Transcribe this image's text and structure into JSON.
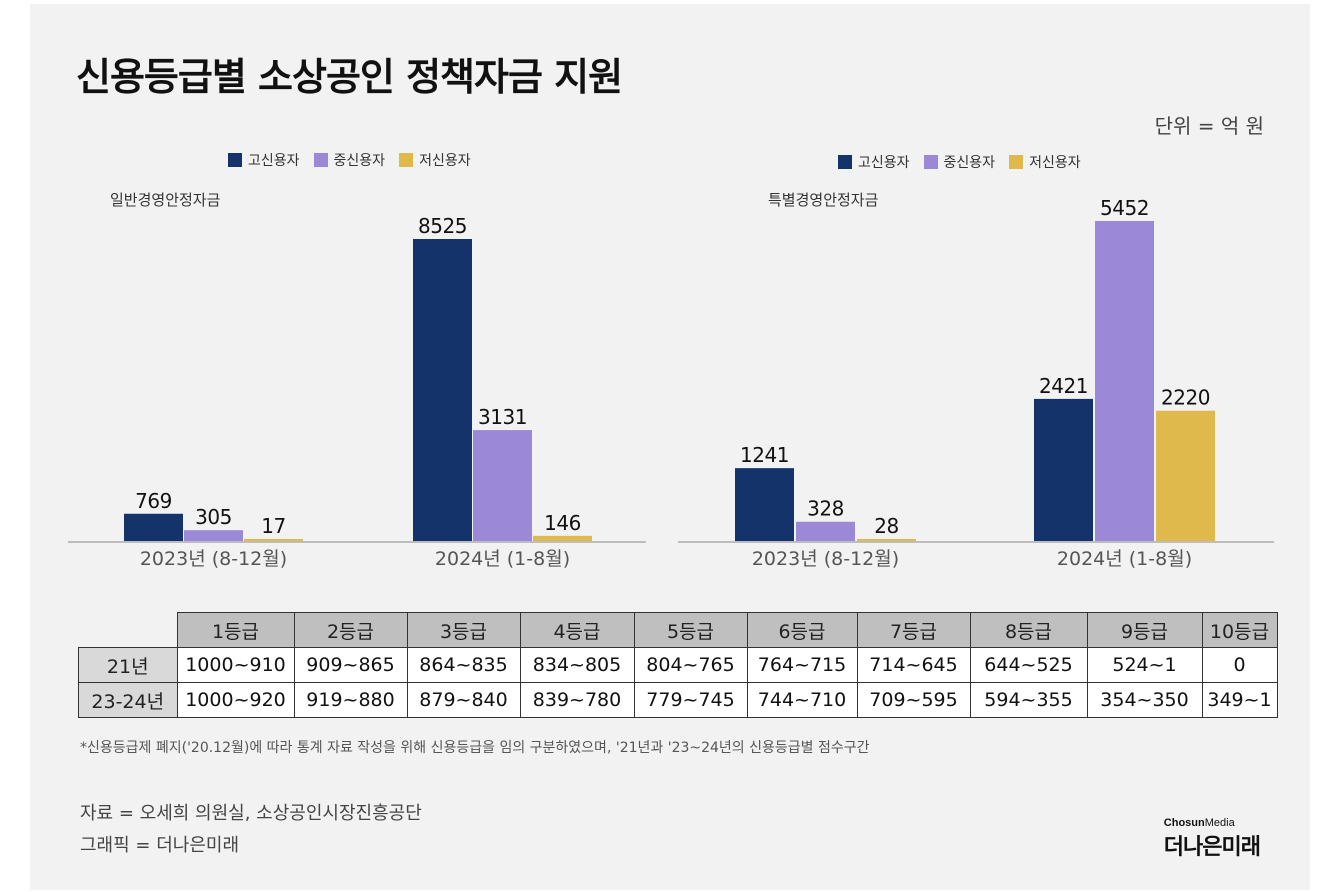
{
  "title": "신용등급별 소상공인 정책자금 지원",
  "unit": "단위 = 억 원",
  "legend": [
    {
      "label": "고신용자",
      "color": "#14336b"
    },
    {
      "label": "중신용자",
      "color": "#9b88d6"
    },
    {
      "label": "저신용자",
      "color": "#dfb94b"
    }
  ],
  "chart_data": [
    {
      "type": "bar",
      "title": "일반경영안정자금",
      "categories": [
        "2023년 (8-12월)",
        "2024년 (1-8월)"
      ],
      "series": [
        {
          "name": "고신용자",
          "values": [
            769,
            8525
          ]
        },
        {
          "name": "중신용자",
          "values": [
            305,
            3131
          ]
        },
        {
          "name": "저신용자",
          "values": [
            17,
            146
          ]
        }
      ],
      "ylim": [
        0,
        8525
      ],
      "unit": "억 원"
    },
    {
      "type": "bar",
      "title": "특별경영안정자금",
      "categories": [
        "2023년 (8-12월)",
        "2024년 (1-8월)"
      ],
      "series": [
        {
          "name": "고신용자",
          "values": [
            1241,
            2421
          ]
        },
        {
          "name": "중신용자",
          "values": [
            328,
            5452
          ]
        },
        {
          "name": "저신용자",
          "values": [
            28,
            2220
          ]
        }
      ],
      "ylim": [
        0,
        5452
      ],
      "unit": "억 원"
    }
  ],
  "table": {
    "headers": [
      "1등급",
      "2등급",
      "3등급",
      "4등급",
      "5등급",
      "6등급",
      "7등급",
      "8등급",
      "9등급",
      "10등급"
    ],
    "rows": [
      {
        "label": "21년",
        "cells": [
          "1000~910",
          "909~865",
          "864~835",
          "834~805",
          "804~765",
          "764~715",
          "714~645",
          "644~525",
          "524~1",
          "0"
        ]
      },
      {
        "label": "23-24년",
        "cells": [
          "1000~920",
          "919~880",
          "879~840",
          "839~780",
          "779~745",
          "744~710",
          "709~595",
          "594~355",
          "354~350",
          "349~1"
        ]
      }
    ]
  },
  "footnote": "*신용등급제 폐지('20.12월)에 따라 통계 자료 작성을 위해 신용등급을 임의 구분하였으며, '21년과 '23~24년의 신용등급별 점수구간",
  "source": {
    "data": "자료 = 오세희 의원실, 소상공인시장진흥공단",
    "graphic": "그래픽 = 더나은미래"
  },
  "brand": {
    "top_bold": "Chosun",
    "top_rest": "Media",
    "main": "더나은미래"
  }
}
